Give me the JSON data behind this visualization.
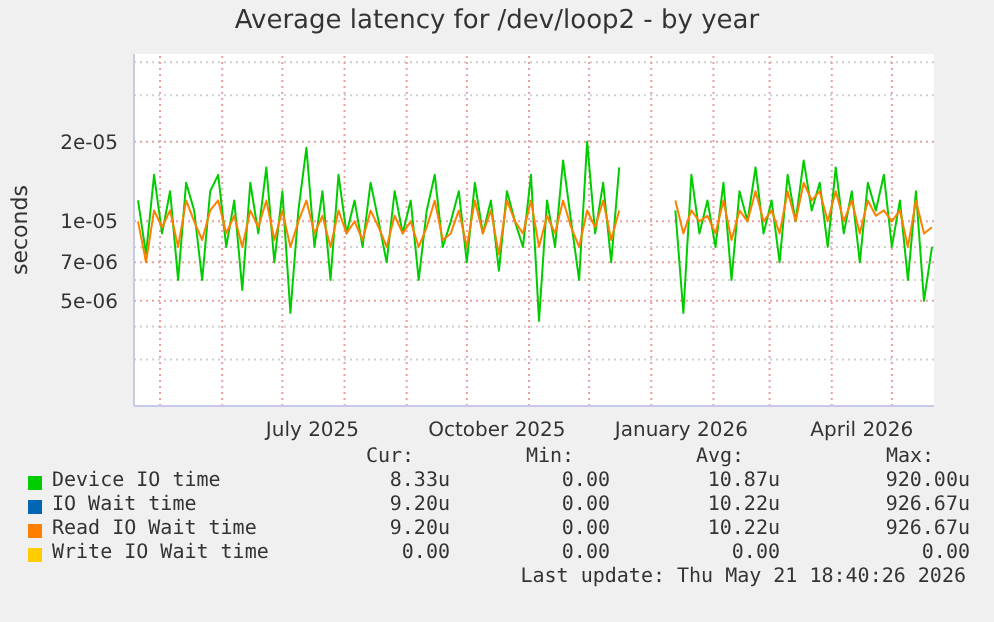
{
  "chart_data": {
    "type": "line",
    "title": "Average latency for /dev/loop2 - by year",
    "ylabel": "seconds",
    "log": true,
    "grid": true,
    "legend": "bottom",
    "marker": "none",
    "line_style": "solid",
    "x": [
      "2025-04-20",
      "2025-04-24",
      "2025-04-28",
      "2025-05-02",
      "2025-05-06",
      "2025-05-10",
      "2025-05-14",
      "2025-05-18",
      "2025-05-22",
      "2025-05-26",
      "2025-05-30",
      "2025-06-03",
      "2025-06-07",
      "2025-06-11",
      "2025-06-15",
      "2025-06-19",
      "2025-06-23",
      "2025-06-27",
      "2025-07-01",
      "2025-07-05",
      "2025-07-09",
      "2025-07-13",
      "2025-07-17",
      "2025-07-21",
      "2025-07-25",
      "2025-07-29",
      "2025-08-02",
      "2025-08-06",
      "2025-08-10",
      "2025-08-14",
      "2025-08-18",
      "2025-08-22",
      "2025-08-26",
      "2025-08-30",
      "2025-09-03",
      "2025-09-07",
      "2025-09-11",
      "2025-09-15",
      "2025-09-19",
      "2025-09-23",
      "2025-09-27",
      "2025-10-01",
      "2025-10-05",
      "2025-10-09",
      "2025-10-13",
      "2025-10-17",
      "2025-10-21",
      "2025-10-25",
      "2025-10-29",
      "2025-11-02",
      "2025-11-06",
      "2025-11-10",
      "2025-11-14",
      "2025-11-18",
      "2025-11-22",
      "2025-11-26",
      "2025-11-30",
      "2025-12-04",
      "2025-12-08",
      "2025-12-12",
      "2025-12-16",
      "2025-12-30",
      "2026-01-13",
      "2026-01-17",
      "2026-01-21",
      "2026-01-25",
      "2026-01-29",
      "2026-02-02",
      "2026-02-06",
      "2026-02-10",
      "2026-02-14",
      "2026-02-18",
      "2026-02-22",
      "2026-02-26",
      "2026-03-02",
      "2026-03-06",
      "2026-03-10",
      "2026-03-14",
      "2026-03-18",
      "2026-03-22",
      "2026-03-26",
      "2026-03-30",
      "2026-04-03",
      "2026-04-07",
      "2026-04-11",
      "2026-04-15",
      "2026-04-19",
      "2026-04-23",
      "2026-04-27",
      "2026-05-01",
      "2026-05-05",
      "2026-05-09",
      "2026-05-13",
      "2026-05-17",
      "2026-05-21"
    ],
    "series": [
      {
        "name": "Device IO time",
        "color": "#00cc00",
        "values": [
          1.2e-05,
          7.5e-06,
          1.5e-05,
          9e-06,
          1.3e-05,
          6e-06,
          1.4e-05,
          1.1e-05,
          6e-06,
          1.3e-05,
          1.5e-05,
          8e-06,
          1.2e-05,
          5.5e-06,
          1.4e-05,
          9e-06,
          1.6e-05,
          7e-06,
          1.3e-05,
          4.5e-06,
          1.1e-05,
          1.9e-05,
          8e-06,
          1.3e-05,
          6e-06,
          1.5e-05,
          9e-06,
          1.2e-05,
          8e-06,
          1.4e-05,
          1e-05,
          7e-06,
          1.3e-05,
          9e-06,
          1.2e-05,
          6e-06,
          1.1e-05,
          1.5e-05,
          8e-06,
          1e-05,
          1.3e-05,
          7e-06,
          1.4e-05,
          9e-06,
          1.2e-05,
          6.5e-06,
          1.3e-05,
          1e-05,
          8e-06,
          1.5e-05,
          4.2e-06,
          1.2e-05,
          8e-06,
          1.7e-05,
          1e-05,
          6e-06,
          2e-05,
          9e-06,
          1.4e-05,
          7e-06,
          1.6e-05,
          null,
          1.1e-05,
          4.5e-06,
          1.5e-05,
          9e-06,
          1.2e-05,
          8e-06,
          1.4e-05,
          6e-06,
          1.3e-05,
          1e-05,
          1.6e-05,
          9e-06,
          1.2e-05,
          7e-06,
          1.5e-05,
          1e-05,
          1.7e-05,
          1.1e-05,
          1.4e-05,
          8e-06,
          1.6e-05,
          9e-06,
          1.3e-05,
          7e-06,
          1.4e-05,
          1.1e-05,
          1.5e-05,
          8e-06,
          1.2e-05,
          6e-06,
          1.3e-05,
          5e-06,
          8e-06
        ]
      },
      {
        "name": "IO Wait time",
        "color": "#0066b3",
        "values": [
          null,
          null,
          null,
          null,
          null,
          null,
          null,
          null,
          null,
          null,
          null,
          null,
          null,
          null,
          null,
          null,
          null,
          null,
          null,
          null,
          null,
          null,
          null,
          null,
          null,
          null,
          null,
          null,
          null,
          null,
          null,
          null,
          null,
          null,
          null,
          null,
          null,
          null,
          null,
          null,
          null,
          null,
          null,
          null,
          null,
          null,
          null,
          null,
          null,
          null,
          null,
          null,
          null,
          null,
          null,
          null,
          null,
          null,
          null,
          null,
          null,
          null,
          null,
          null,
          null,
          null,
          null,
          null,
          null,
          null,
          null,
          null,
          null,
          null,
          null,
          null,
          null,
          null,
          null,
          null,
          null,
          null,
          null,
          null,
          null,
          null,
          null,
          null,
          null,
          null,
          null,
          null,
          null,
          null,
          null
        ]
      },
      {
        "name": "Read IO Wait time",
        "color": "#ff8000",
        "values": [
          1e-05,
          7e-06,
          1.1e-05,
          9.5e-06,
          1.1e-05,
          8e-06,
          1.2e-05,
          1e-05,
          8.5e-06,
          1.1e-05,
          1.2e-05,
          9e-06,
          1.05e-05,
          8e-06,
          1.1e-05,
          9.5e-06,
          1.2e-05,
          8.5e-06,
          1.1e-05,
          8e-06,
          1e-05,
          1.2e-05,
          9e-06,
          1.05e-05,
          8e-06,
          1.1e-05,
          9e-06,
          1e-05,
          8.5e-06,
          1.1e-05,
          9.5e-06,
          8e-06,
          1.05e-05,
          9e-06,
          1e-05,
          8e-06,
          9.5e-06,
          1.2e-05,
          8.5e-06,
          9e-06,
          1.1e-05,
          8e-06,
          1.2e-05,
          9e-06,
          1.1e-05,
          7.5e-06,
          1.2e-05,
          1e-05,
          9e-06,
          1.2e-05,
          8e-06,
          1.05e-05,
          9e-06,
          1.2e-05,
          9.5e-06,
          8e-06,
          1.1e-05,
          9.5e-06,
          1.2e-05,
          8.5e-06,
          1.1e-05,
          null,
          1.2e-05,
          9e-06,
          1.1e-05,
          1e-05,
          1.05e-05,
          9e-06,
          1.2e-05,
          8.5e-06,
          1.1e-05,
          1e-05,
          1.3e-05,
          1e-05,
          1.1e-05,
          9e-06,
          1.3e-05,
          1e-05,
          1.4e-05,
          1.2e-05,
          1.3e-05,
          1e-05,
          1.3e-05,
          1e-05,
          1.2e-05,
          9e-06,
          1.2e-05,
          1.05e-05,
          1.1e-05,
          1e-05,
          1.1e-05,
          8e-06,
          1.2e-05,
          9e-06,
          9.5e-06
        ]
      },
      {
        "name": "Write IO Wait time",
        "color": "#ffcc00",
        "values": [
          null,
          null,
          null,
          null,
          null,
          null,
          null,
          null,
          null,
          null,
          null,
          null,
          null,
          null,
          null,
          null,
          null,
          null,
          null,
          null,
          null,
          null,
          null,
          null,
          null,
          null,
          null,
          null,
          null,
          null,
          null,
          null,
          null,
          null,
          null,
          null,
          null,
          null,
          null,
          null,
          null,
          null,
          null,
          null,
          null,
          null,
          null,
          null,
          null,
          null,
          null,
          null,
          null,
          null,
          null,
          null,
          null,
          null,
          null,
          null,
          null,
          null,
          null,
          null,
          null,
          null,
          null,
          null,
          null,
          null,
          null,
          null,
          null,
          null,
          null,
          null,
          null,
          null,
          null,
          null,
          null,
          null,
          null,
          null,
          null,
          null,
          null,
          null,
          null,
          null,
          null,
          null,
          null,
          null,
          null
        ]
      }
    ],
    "xlim": [
      "2025-04-18",
      "2026-05-22"
    ],
    "xticks": [
      {
        "value": "2025-05-01",
        "label": null
      },
      {
        "value": "2025-06-01",
        "label": null
      },
      {
        "value": "2025-07-01",
        "label": null
      },
      {
        "value": "2025-07-16",
        "label": "July 2025"
      },
      {
        "value": "2025-08-01",
        "label": null
      },
      {
        "value": "2025-09-01",
        "label": null
      },
      {
        "value": "2025-10-01",
        "label": null
      },
      {
        "value": "2025-10-16",
        "label": "October 2025"
      },
      {
        "value": "2025-11-01",
        "label": null
      },
      {
        "value": "2025-12-01",
        "label": null
      },
      {
        "value": "2026-01-01",
        "label": null
      },
      {
        "value": "2026-01-16",
        "label": "January 2026"
      },
      {
        "value": "2026-02-01",
        "label": null
      },
      {
        "value": "2026-03-01",
        "label": null
      },
      {
        "value": "2026-04-01",
        "label": null
      },
      {
        "value": "2026-04-16",
        "label": "April 2026"
      },
      {
        "value": "2026-05-01",
        "label": null
      }
    ],
    "ylim": [
      2e-06,
      4.3e-05
    ],
    "yticks": [
      {
        "value": 3e-06,
        "label": null
      },
      {
        "value": 4e-06,
        "label": null
      },
      {
        "value": 5e-06,
        "label": "5e-06"
      },
      {
        "value": 6e-06,
        "label": null
      },
      {
        "value": 7e-06,
        "label": "7e-06"
      },
      {
        "value": 8e-06,
        "label": null
      },
      {
        "value": 1e-05,
        "label": "1e-05"
      },
      {
        "value": 2e-05,
        "label": "2e-05"
      },
      {
        "value": 3e-05,
        "label": null
      },
      {
        "value": 4e-05,
        "label": null
      }
    ],
    "annotations": [
      "Cur:",
      "Min:",
      "Avg:",
      "Max:",
      "8.33u",
      "0.00",
      "10.87u",
      "920.00u",
      "9.20u",
      "0.00",
      "10.22u",
      "926.67u",
      "9.20u",
      "0.00",
      "10.22u",
      "926.67u",
      "0.00",
      "0.00",
      "0.00",
      "0.00",
      "Last update: Thu May 21 18:40:26 2026"
    ]
  }
}
